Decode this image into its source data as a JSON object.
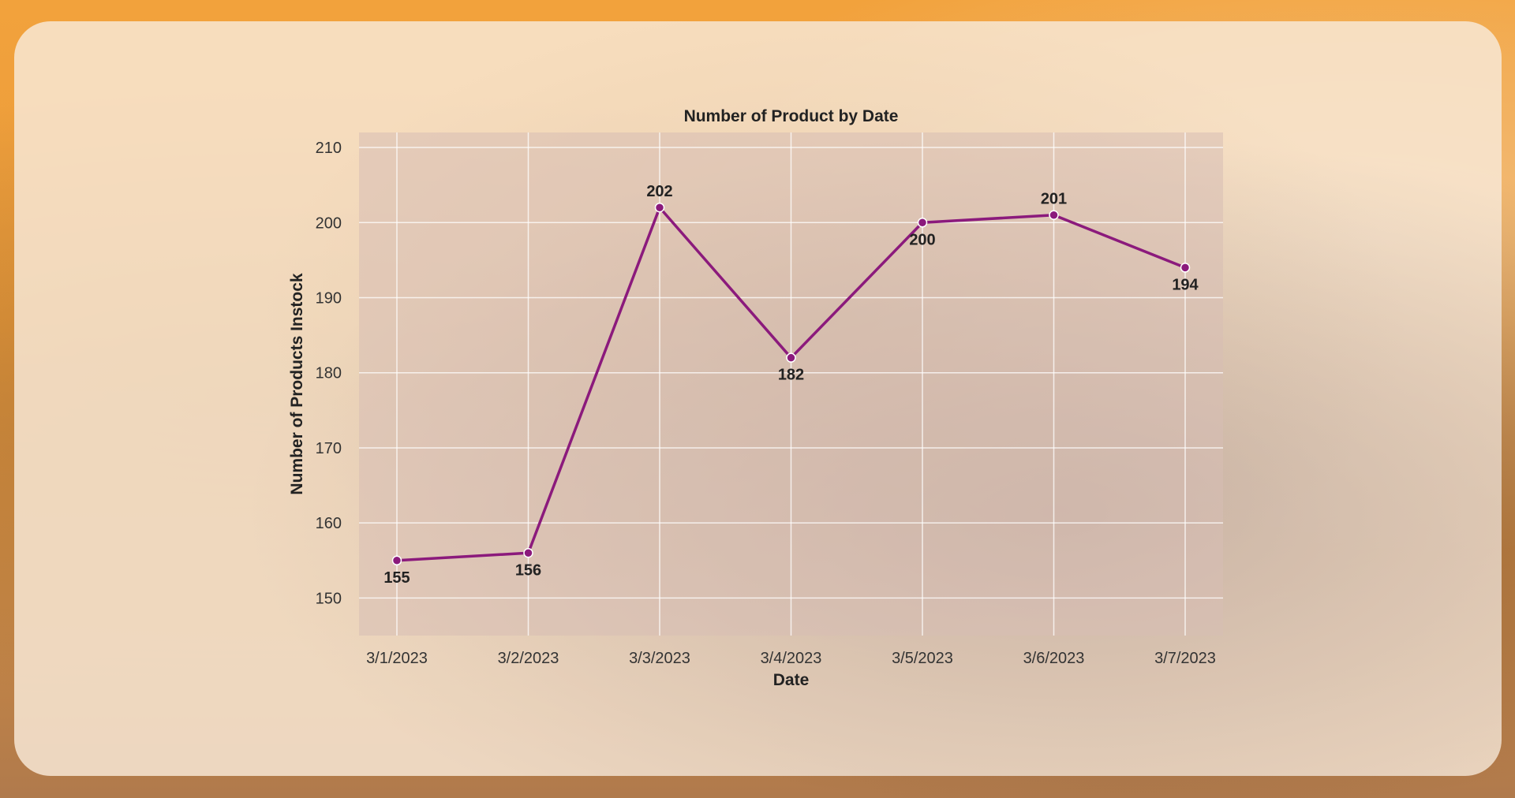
{
  "chart_data": {
    "type": "line",
    "title": "Number of Product by Date",
    "xlabel": "Date",
    "ylabel": "Number of Products Instock",
    "categories": [
      "3/1/2023",
      "3/2/2023",
      "3/3/2023",
      "3/4/2023",
      "3/5/2023",
      "3/6/2023",
      "3/7/2023"
    ],
    "series": [
      {
        "values": [
          155,
          156,
          202,
          182,
          200,
          201,
          194
        ]
      }
    ],
    "data_labels": [
      "155",
      "156",
      "202",
      "182",
      "200",
      "201",
      "194"
    ],
    "yticks": [
      150,
      160,
      170,
      180,
      190,
      200,
      210
    ],
    "ylim": [
      145,
      212
    ],
    "grid": true,
    "colors": {
      "line": "#8b1a7c",
      "plot_bg": "rgba(215, 190, 180, 0.55)",
      "grid": "rgba(255,255,255,0.75)"
    }
  }
}
